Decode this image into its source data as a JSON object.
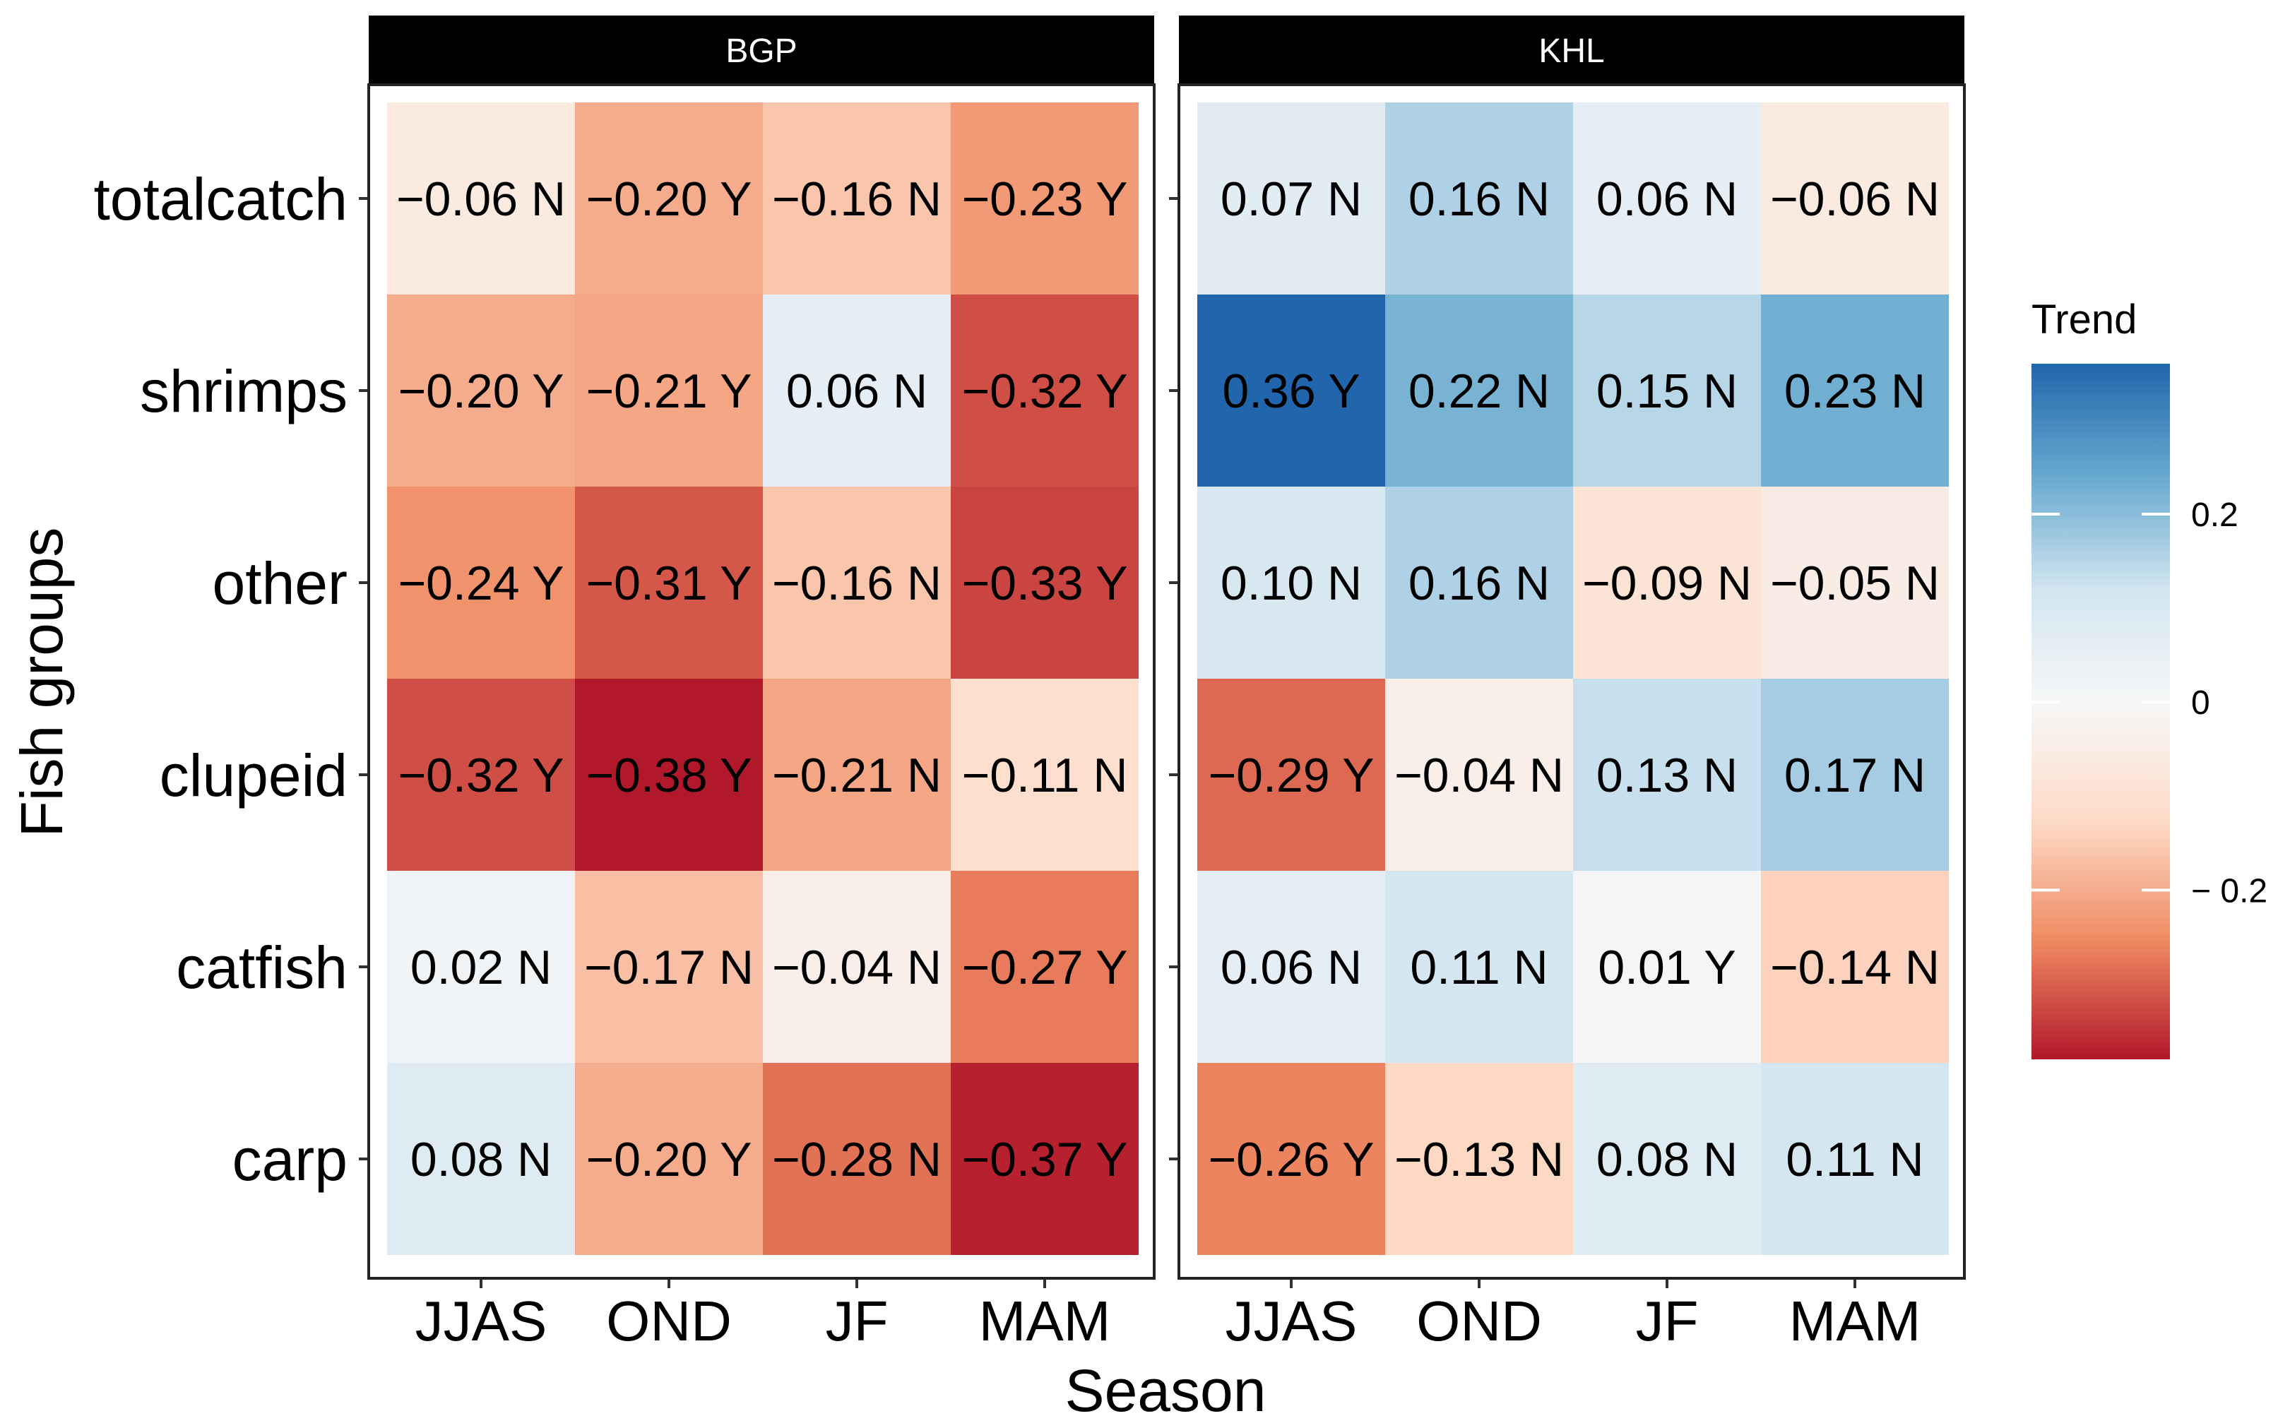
{
  "chart_data": {
    "type": "heatmap",
    "xlabel": "Season",
    "ylabel": "Fish groups",
    "categories": [
      "JJAS",
      "OND",
      "JF",
      "MAM"
    ],
    "rows": [
      "totalcatch",
      "shrimps",
      "other",
      "clupeid",
      "catfish",
      "carp"
    ],
    "panels": [
      {
        "name": "BGP",
        "values": [
          [
            -0.06,
            -0.2,
            -0.16,
            -0.23
          ],
          [
            -0.2,
            -0.21,
            0.06,
            -0.32
          ],
          [
            -0.24,
            -0.31,
            -0.16,
            -0.33
          ],
          [
            -0.32,
            -0.38,
            -0.21,
            -0.11
          ],
          [
            0.02,
            -0.17,
            -0.04,
            -0.27
          ],
          [
            0.08,
            -0.2,
            -0.28,
            -0.37
          ]
        ],
        "labels": [
          [
            "−0.06 N",
            "−0.20 Y",
            "−0.16 N",
            "−0.23 Y"
          ],
          [
            "−0.20 Y",
            "−0.21 Y",
            "0.06 N",
            "−0.32 Y"
          ],
          [
            "−0.24 Y",
            "−0.31 Y",
            "−0.16 N",
            "−0.33 Y"
          ],
          [
            "−0.32 Y",
            "−0.38 Y",
            "−0.21 N",
            "−0.11 N"
          ],
          [
            "0.02 N",
            "−0.17 N",
            "−0.04 N",
            "−0.27 Y"
          ],
          [
            "0.08 N",
            "−0.20 Y",
            "−0.28 N",
            "−0.37 Y"
          ]
        ]
      },
      {
        "name": "KHL",
        "values": [
          [
            0.07,
            0.16,
            0.06,
            -0.06
          ],
          [
            0.36,
            0.22,
            0.15,
            0.23
          ],
          [
            0.1,
            0.16,
            -0.09,
            -0.05
          ],
          [
            -0.29,
            -0.04,
            0.13,
            0.17
          ],
          [
            0.06,
            0.11,
            0.01,
            -0.14
          ],
          [
            -0.26,
            -0.13,
            0.08,
            0.11
          ]
        ],
        "labels": [
          [
            "0.07 N",
            "0.16 N",
            "0.06 N",
            "−0.06 N"
          ],
          [
            "0.36 Y",
            "0.22 N",
            "0.15 N",
            "0.23 N"
          ],
          [
            "0.10 N",
            "0.16 N",
            "−0.09 N",
            "−0.05 N"
          ],
          [
            "−0.29 Y",
            "−0.04 N",
            "0.13 N",
            "0.17 N"
          ],
          [
            "0.06 N",
            "0.11 N",
            "0.01 Y",
            "−0.14 N"
          ],
          [
            "−0.26 Y",
            "−0.13 N",
            "0.08 N",
            "0.11 N"
          ]
        ]
      }
    ],
    "legend": {
      "title": "Trend",
      "position": "right",
      "range": [
        -0.38,
        0.36
      ],
      "ticks": [
        0.2,
        0,
        -0.2
      ],
      "tick_labels": [
        "0.2",
        "0",
        "− 0.2"
      ],
      "colors": [
        "#b2182b",
        "#ef8a62",
        "#fddbc7",
        "#f7f7f7",
        "#d1e5f0",
        "#67a9cf",
        "#2166ac"
      ]
    }
  }
}
